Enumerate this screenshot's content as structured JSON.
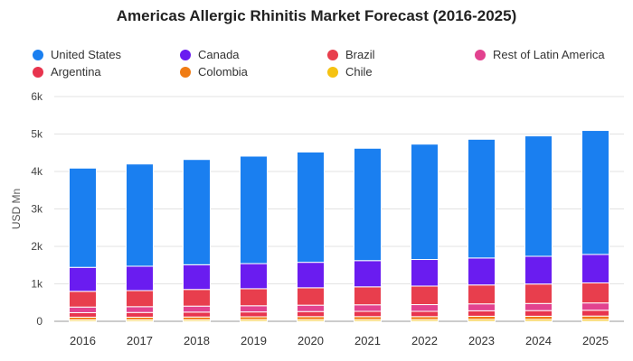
{
  "chart_data": {
    "type": "bar",
    "stacked": true,
    "title": "Americas Allergic Rhinitis Market Forecast (2016-2025)",
    "xlabel": "",
    "ylabel": "USD Mn",
    "ylim": [
      0,
      6000
    ],
    "yticks": [
      {
        "value": 0,
        "label": "0"
      },
      {
        "value": 1000,
        "label": "1k"
      },
      {
        "value": 2000,
        "label": "2k"
      },
      {
        "value": 3000,
        "label": "3k"
      },
      {
        "value": 4000,
        "label": "4k"
      },
      {
        "value": 5000,
        "label": "5k"
      },
      {
        "value": 6000,
        "label": "6k"
      }
    ],
    "grid": true,
    "legend_position": "top",
    "categories": [
      "2016",
      "2017",
      "2018",
      "2019",
      "2020",
      "2021",
      "2022",
      "2023",
      "2024",
      "2025"
    ],
    "series": [
      {
        "name": "Chile",
        "color": "#f5c211",
        "values": [
          40,
          40,
          40,
          45,
          45,
          45,
          45,
          50,
          50,
          50
        ]
      },
      {
        "name": "Colombia",
        "color": "#f07c14",
        "values": [
          70,
          70,
          75,
          75,
          80,
          80,
          80,
          85,
          85,
          90
        ]
      },
      {
        "name": "Argentina",
        "color": "#e8344e",
        "values": [
          120,
          125,
          130,
          130,
          135,
          140,
          140,
          145,
          150,
          155
        ]
      },
      {
        "name": "Rest of Latin America",
        "color": "#e2428f",
        "values": [
          150,
          155,
          160,
          165,
          170,
          175,
          180,
          185,
          190,
          195
        ]
      },
      {
        "name": "Brazil",
        "color": "#e83e4d",
        "values": [
          420,
          430,
          445,
          455,
          465,
          480,
          495,
          505,
          520,
          535
        ]
      },
      {
        "name": "Canada",
        "color": "#6a1cf0",
        "values": [
          640,
          650,
          660,
          670,
          680,
          700,
          710,
          720,
          740,
          760
        ]
      },
      {
        "name": "United States",
        "color": "#1a7ff0",
        "values": [
          2650,
          2730,
          2810,
          2870,
          2945,
          3000,
          3080,
          3170,
          3215,
          3310
        ]
      }
    ]
  },
  "legend": [
    {
      "label": "United States",
      "color": "#1a7ff0"
    },
    {
      "label": "Canada",
      "color": "#6a1cf0"
    },
    {
      "label": "Brazil",
      "color": "#e83e4d"
    },
    {
      "label": "Rest of Latin America",
      "color": "#e2428f"
    },
    {
      "label": "Argentina",
      "color": "#e8344e"
    },
    {
      "label": "Colombia",
      "color": "#f07c14"
    },
    {
      "label": "Chile",
      "color": "#f5c211"
    }
  ]
}
